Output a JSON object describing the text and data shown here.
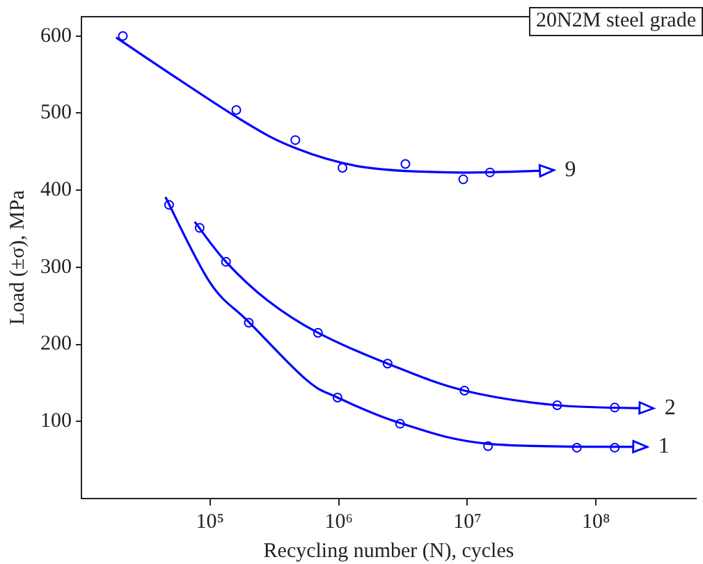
{
  "chart_data": {
    "type": "scatter",
    "xlabel": "Recycling number (N), cycles",
    "ylabel": "Load (±σ), MPa",
    "annotations": [
      "20N2M steel grade",
      "9",
      "2",
      "1"
    ],
    "log": "x",
    "xlim": [
      10000,
      600000000
    ],
    "xticks": [
      {
        "value": 100000,
        "label": "10⁵"
      },
      {
        "value": 1000000,
        "label": "10⁶"
      },
      {
        "value": 10000000,
        "label": "10⁷"
      },
      {
        "value": 100000000,
        "label": "10⁸"
      }
    ],
    "ylim": [
      0,
      625
    ],
    "yticks": [
      100,
      200,
      300,
      400,
      500,
      600
    ],
    "grid": false,
    "marker": "circle",
    "series": [
      {
        "color": "#0000ff",
        "x": [
          21000,
          160000,
          460000,
          1070000,
          3300000,
          9300000,
          15000000
        ],
        "values": [
          600,
          504,
          465,
          429,
          434,
          414,
          423
        ]
      },
      {
        "color": "#0000ff",
        "x": [
          83000,
          133000,
          690000,
          2400000,
          9500000,
          50000000,
          140000000
        ],
        "values": [
          351,
          307,
          215,
          175,
          140,
          121,
          118
        ]
      },
      {
        "color": "#0000ff",
        "x": [
          48000,
          200000,
          980000,
          3000000,
          14500000,
          71000000,
          140000000
        ],
        "values": [
          381,
          228,
          131,
          97,
          68,
          66,
          66
        ]
      }
    ]
  }
}
